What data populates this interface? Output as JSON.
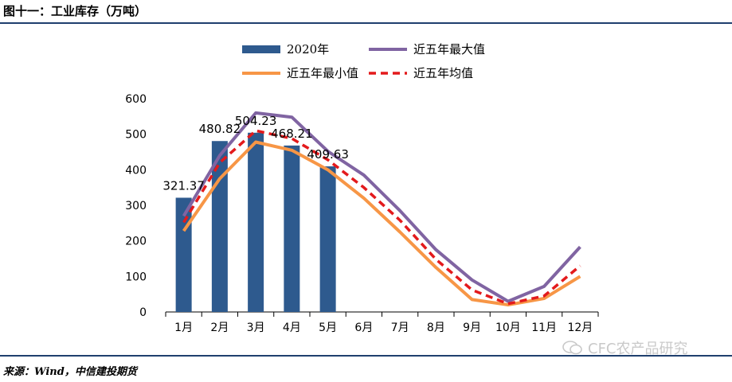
{
  "page": {
    "title": "图十一：工业库存（万吨）",
    "source": "来源：Wind，中信建投期货",
    "watermark": "CFC农产品研究"
  },
  "chart_data": {
    "type": "bar",
    "title": "",
    "xlabel": "",
    "ylabel": "",
    "categories": [
      "1月",
      "2月",
      "3月",
      "4月",
      "5月",
      "6月",
      "7月",
      "8月",
      "9月",
      "10月",
      "11月",
      "12月"
    ],
    "ylim": [
      0,
      600
    ],
    "yticks": [
      "0",
      "100",
      "200",
      "300",
      "400",
      "500",
      "600"
    ],
    "grid": false,
    "legend_position": "top",
    "series": [
      {
        "name": "2020年",
        "type": "bar",
        "color": "#2e5a8e",
        "values": [
          321.37,
          480.82,
          504.23,
          468.21,
          409.63,
          null,
          null,
          null,
          null,
          null,
          null,
          null
        ],
        "data_labels": [
          "321.37",
          "480.82",
          "504.23",
          "468.21",
          "409.63"
        ]
      },
      {
        "name": "近五年最大值",
        "type": "line",
        "color": "#8064a2",
        "style": "solid",
        "values": [
          270,
          440,
          560,
          548,
          452,
          385,
          285,
          175,
          90,
          30,
          72,
          183
        ]
      },
      {
        "name": "近五年最小值",
        "type": "line",
        "color": "#f79646",
        "style": "solid",
        "values": [
          228,
          375,
          478,
          455,
          400,
          320,
          225,
          125,
          35,
          20,
          38,
          100
        ]
      },
      {
        "name": "近五年均值",
        "type": "line",
        "color": "#e31a1c",
        "style": "dashed",
        "values": [
          252,
          420,
          510,
          488,
          428,
          350,
          258,
          148,
          62,
          23,
          45,
          130
        ]
      }
    ]
  }
}
